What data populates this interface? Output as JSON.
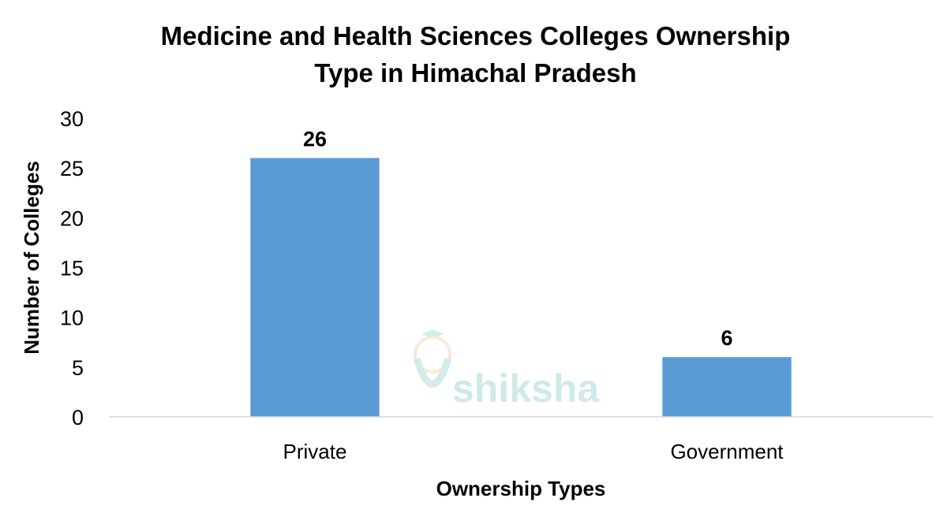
{
  "chart_data": {
    "type": "bar",
    "title_lines": [
      "Medicine and Health Sciences Colleges Ownership",
      "Type in Himachal Pradesh"
    ],
    "categories": [
      "Private",
      "Government"
    ],
    "values": [
      26,
      6
    ],
    "xlabel": "Ownership Types",
    "ylabel": "Number of Colleges",
    "ylim": [
      0,
      30
    ],
    "yticks": [
      0,
      5,
      10,
      15,
      20,
      25,
      30
    ],
    "bar_color": "#5b9bd5",
    "grid": false,
    "legend": "none",
    "data_labels": true
  },
  "watermark": {
    "text": "shiksha",
    "color": "#a9d8d6"
  }
}
